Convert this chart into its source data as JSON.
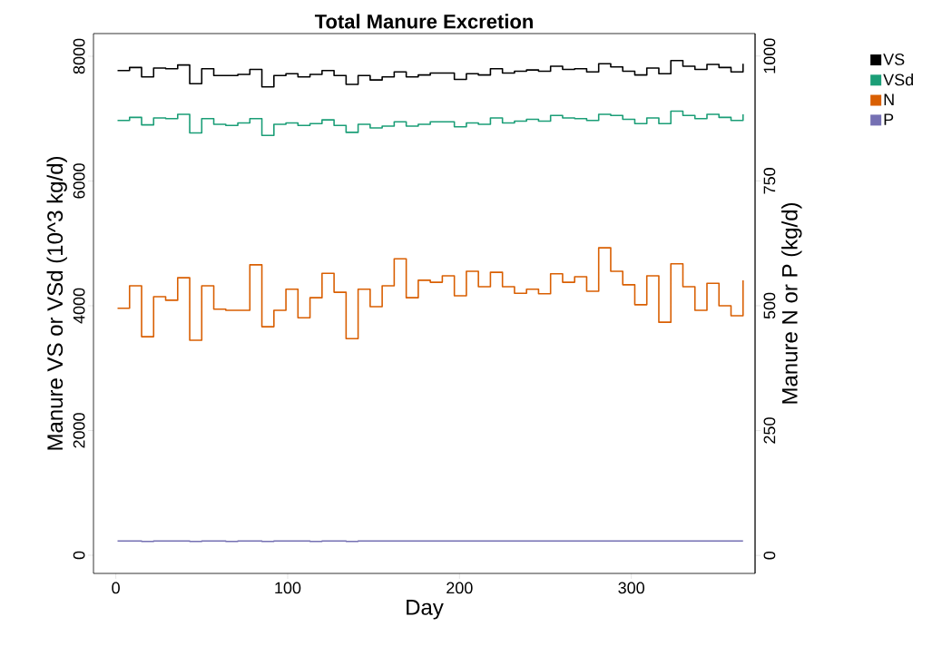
{
  "chart_data": {
    "type": "step",
    "title": "Total Manure Excretion",
    "xlabel": "Day",
    "ylabel": "Manure VS or VSd (10^3 kg/d)",
    "y2label": "Manure N or P (kg/d)",
    "x": [
      1,
      8,
      15,
      22,
      29,
      36,
      43,
      50,
      57,
      64,
      71,
      78,
      85,
      92,
      99,
      106,
      113,
      120,
      127,
      134,
      141,
      148,
      155,
      162,
      169,
      176,
      183,
      190,
      197,
      204,
      211,
      218,
      225,
      232,
      239,
      246,
      253,
      260,
      267,
      274,
      281,
      288,
      295,
      302,
      309,
      316,
      323,
      330,
      337,
      344,
      351,
      358,
      365
    ],
    "series": [
      {
        "name": "VS",
        "color": "#000000",
        "axis": "y",
        "values": [
          7770,
          7820,
          7670,
          7810,
          7800,
          7860,
          7560,
          7800,
          7690,
          7690,
          7710,
          7790,
          7510,
          7690,
          7720,
          7670,
          7710,
          7770,
          7690,
          7550,
          7690,
          7620,
          7670,
          7750,
          7670,
          7700,
          7730,
          7730,
          7630,
          7720,
          7700,
          7800,
          7730,
          7760,
          7780,
          7760,
          7840,
          7790,
          7800,
          7750,
          7880,
          7830,
          7760,
          7700,
          7810,
          7720,
          7930,
          7840,
          7790,
          7870,
          7820,
          7750,
          7880
        ]
      },
      {
        "name": "VSd",
        "color": "#1b9e77",
        "axis": "y",
        "values": [
          6970,
          7020,
          6900,
          7010,
          7000,
          7070,
          6770,
          7000,
          6910,
          6890,
          6930,
          7000,
          6730,
          6910,
          6930,
          6890,
          6920,
          6980,
          6890,
          6780,
          6910,
          6850,
          6880,
          6950,
          6880,
          6910,
          6950,
          6950,
          6870,
          6930,
          6910,
          7010,
          6930,
          6960,
          6990,
          6960,
          7050,
          7010,
          7000,
          6970,
          7070,
          7050,
          6990,
          6920,
          7010,
          6920,
          7120,
          7050,
          7000,
          7070,
          7020,
          6970,
          7070
        ]
      },
      {
        "name": "N",
        "color": "#d95f02",
        "axis": "y2",
        "values": [
          495,
          540,
          438,
          518,
          511,
          556,
          431,
          540,
          493,
          491,
          491,
          582,
          458,
          491,
          533,
          476,
          516,
          565,
          527,
          434,
          533,
          498,
          540,
          594,
          516,
          551,
          547,
          560,
          520,
          569,
          538,
          567,
          538,
          525,
          533,
          524,
          564,
          547,
          558,
          529,
          616,
          569,
          542,
          502,
          560,
          467,
          584,
          538,
          491,
          545,
          500,
          480,
          551
        ]
      },
      {
        "name": "P",
        "color": "#7570b3",
        "axis": "y2",
        "values": [
          29,
          29,
          28,
          29,
          29,
          29,
          28,
          29,
          29,
          28,
          29,
          29,
          28,
          29,
          29,
          29,
          28,
          29,
          29,
          28,
          29,
          29,
          29,
          29,
          29,
          29,
          29,
          29,
          29,
          29,
          29,
          29,
          29,
          29,
          29,
          29,
          29,
          29,
          29,
          29,
          29,
          29,
          29,
          29,
          29,
          29,
          29,
          29,
          29,
          29,
          29,
          29,
          29
        ]
      }
    ],
    "xlim": [
      -13,
      372
    ],
    "xticks": [
      0,
      100,
      200,
      300
    ],
    "ylim": [
      -291,
      8364
    ],
    "yticks": [
      0,
      2000,
      4000,
      6000,
      8000
    ],
    "y2lim": [
      -36,
      1045
    ],
    "y2ticks": [
      0,
      250,
      500,
      750,
      1000
    ],
    "legend": "right"
  }
}
